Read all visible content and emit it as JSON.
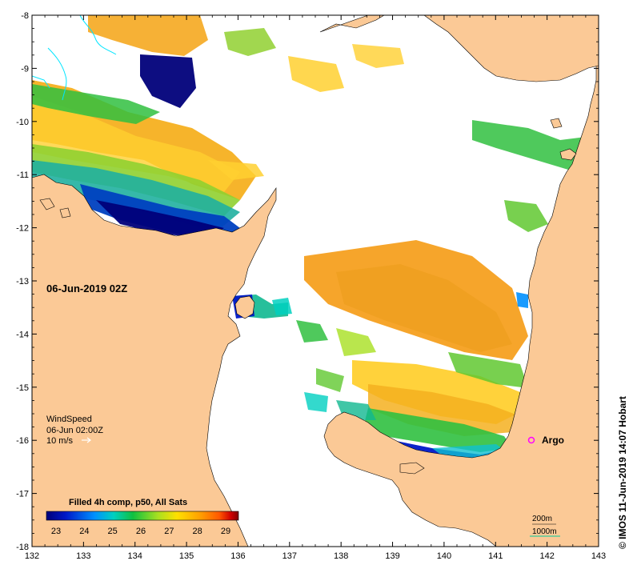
{
  "map": {
    "date_label": "06-Jun-2019 02Z",
    "credit": "© IMOS 11-Jun-2019 14:07 Hobart",
    "wind": {
      "title": "WindSpeed",
      "time": "06-Jun 02:00Z",
      "scale": "10 m/s"
    },
    "argo_label": "Argo",
    "contour_labels": [
      "200m",
      "1000m"
    ],
    "axes": {
      "x_ticks": [
        "132",
        "133",
        "134",
        "135",
        "136",
        "137",
        "138",
        "139",
        "140",
        "141",
        "142",
        "143"
      ],
      "y_ticks": [
        "-8",
        "-9",
        "-10",
        "-11",
        "-12",
        "-13",
        "-14",
        "-15",
        "-16",
        "-17",
        "-18"
      ]
    },
    "colorbar": {
      "title": "Filled 4h comp, p50, All Sats",
      "ticks": [
        "23",
        "24",
        "25",
        "26",
        "27",
        "28",
        "29"
      ],
      "colors": [
        "#00007a",
        "#0018c8",
        "#0090ff",
        "#00d0c0",
        "#10c040",
        "#a8e020",
        "#ffe000",
        "#ffa000",
        "#ff5800",
        "#d00000",
        "#800000"
      ]
    },
    "colors": {
      "land": "#fbc996",
      "ocean_nodata": "#ffffff",
      "argo": "#ff00ff",
      "contour_1000m": "#00cc99",
      "rivers": "#00e5ff"
    }
  }
}
